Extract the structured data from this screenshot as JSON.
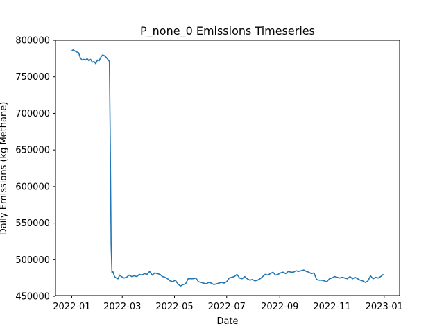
{
  "chart_data": {
    "type": "line",
    "title": "P_none_0 Emissions Timeseries",
    "xlabel": "Date",
    "ylabel": "Daily Emissions (kg Methane)",
    "x_ticks": [
      "2022-01",
      "2022-03",
      "2022-05",
      "2022-07",
      "2022-09",
      "2022-11",
      "2023-01"
    ],
    "y_ticks": [
      450000,
      500000,
      550000,
      600000,
      650000,
      700000,
      750000,
      800000
    ],
    "y_tick_labels": [
      "450000",
      "500000",
      "550000",
      "600000",
      "650000",
      "700000",
      "750000",
      "800000"
    ],
    "xlim": [
      "2021-12-13",
      "2023-01-19"
    ],
    "ylim": [
      451000,
      800000
    ],
    "grid": false,
    "line_color": "#1f77b4",
    "series": [
      {
        "x": [
          "2022-01-01",
          "2022-01-03",
          "2022-01-05",
          "2022-01-07",
          "2022-01-09",
          "2022-01-11",
          "2022-01-13",
          "2022-01-15",
          "2022-01-17",
          "2022-01-19",
          "2022-01-21",
          "2022-01-23",
          "2022-01-25",
          "2022-01-27",
          "2022-01-29",
          "2022-01-31",
          "2022-02-02",
          "2022-02-04",
          "2022-02-06",
          "2022-02-08",
          "2022-02-10",
          "2022-02-12",
          "2022-02-14",
          "2022-02-15",
          "2022-02-16",
          "2022-02-17",
          "2022-02-18",
          "2022-02-20",
          "2022-02-22",
          "2022-02-24",
          "2022-02-26",
          "2022-02-28",
          "2022-03-03",
          "2022-03-06",
          "2022-03-09",
          "2022-03-12",
          "2022-03-15",
          "2022-03-18",
          "2022-03-21",
          "2022-03-24",
          "2022-03-27",
          "2022-03-30",
          "2022-04-02",
          "2022-04-05",
          "2022-04-08",
          "2022-04-11",
          "2022-04-14",
          "2022-04-17",
          "2022-04-20",
          "2022-04-23",
          "2022-04-26",
          "2022-04-29",
          "2022-05-02",
          "2022-05-05",
          "2022-05-08",
          "2022-05-11",
          "2022-05-14",
          "2022-05-17",
          "2022-05-20",
          "2022-05-23",
          "2022-05-26",
          "2022-05-29",
          "2022-06-01",
          "2022-06-04",
          "2022-06-07",
          "2022-06-10",
          "2022-06-13",
          "2022-06-16",
          "2022-06-19",
          "2022-06-22",
          "2022-06-25",
          "2022-06-28",
          "2022-07-01",
          "2022-07-04",
          "2022-07-07",
          "2022-07-10",
          "2022-07-13",
          "2022-07-16",
          "2022-07-19",
          "2022-07-22",
          "2022-07-25",
          "2022-07-28",
          "2022-07-31",
          "2022-08-03",
          "2022-08-06",
          "2022-08-09",
          "2022-08-12",
          "2022-08-15",
          "2022-08-18",
          "2022-08-21",
          "2022-08-24",
          "2022-08-27",
          "2022-08-30",
          "2022-09-02",
          "2022-09-05",
          "2022-09-08",
          "2022-09-11",
          "2022-09-14",
          "2022-09-17",
          "2022-09-20",
          "2022-09-23",
          "2022-09-26",
          "2022-09-29",
          "2022-10-02",
          "2022-10-05",
          "2022-10-08",
          "2022-10-11",
          "2022-10-14",
          "2022-10-17",
          "2022-10-20",
          "2022-10-23",
          "2022-10-26",
          "2022-10-29",
          "2022-11-01",
          "2022-11-04",
          "2022-11-07",
          "2022-11-10",
          "2022-11-13",
          "2022-11-16",
          "2022-11-19",
          "2022-11-22",
          "2022-11-25",
          "2022-11-28",
          "2022-12-01",
          "2022-12-04",
          "2022-12-07",
          "2022-12-10",
          "2022-12-13",
          "2022-12-16",
          "2022-12-19",
          "2022-12-22",
          "2022-12-25",
          "2022-12-28",
          "2022-12-31"
        ],
        "y": [
          786000,
          787000,
          785000,
          784000,
          783000,
          776000,
          773000,
          774000,
          773000,
          775000,
          772000,
          774000,
          770000,
          771000,
          768000,
          773000,
          772000,
          777000,
          780000,
          779000,
          777000,
          774000,
          771000,
          660000,
          520000,
          482000,
          484000,
          477000,
          475000,
          474000,
          479000,
          477000,
          475000,
          476000,
          479000,
          477000,
          478000,
          477000,
          480000,
          479000,
          481000,
          480000,
          484000,
          479000,
          482000,
          481000,
          480000,
          477000,
          476000,
          474000,
          471000,
          470000,
          472000,
          467000,
          464000,
          466000,
          467000,
          474000,
          474000,
          474000,
          475000,
          470000,
          469000,
          468000,
          467000,
          469000,
          468000,
          466000,
          467000,
          468000,
          469000,
          468000,
          470000,
          475000,
          476000,
          477000,
          480000,
          475000,
          474000,
          477000,
          474000,
          472000,
          473000,
          471000,
          472000,
          474000,
          477000,
          480000,
          479000,
          481000,
          483000,
          479000,
          480000,
          482000,
          483000,
          481000,
          484000,
          483000,
          483000,
          485000,
          484000,
          485000,
          486000,
          484000,
          483000,
          481000,
          482000,
          473000,
          472000,
          472000,
          471000,
          470000,
          474000,
          475000,
          477000,
          476000,
          475000,
          476000,
          475000,
          474000,
          477000,
          474000,
          476000,
          474000,
          472000,
          471000,
          469000,
          471000,
          478000,
          474000,
          476000,
          475000,
          477000,
          480000
        ]
      }
    ]
  }
}
